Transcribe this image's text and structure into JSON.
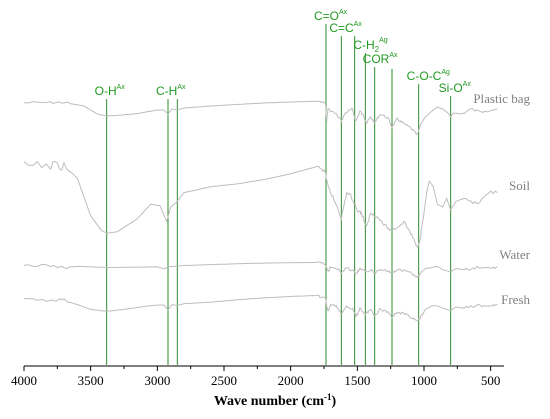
{
  "chart_data": {
    "type": "line",
    "xlabel": "Wave number (cm",
    "xlabel_sup": "-1",
    "xlabel_close": ")",
    "xlim": [
      4000,
      400
    ],
    "x_reversed": true,
    "x_ticks": [
      4000,
      3500,
      3000,
      2500,
      2000,
      1500,
      1000,
      500
    ],
    "y_axis_visible": false,
    "series": [
      {
        "name": "Plastic bag",
        "color": "#bdbdbd",
        "points": [
          [
            4000,
            0.9
          ],
          [
            3800,
            0.8
          ],
          [
            3700,
            0.75
          ],
          [
            3550,
            2.5
          ],
          [
            3450,
            6.5
          ],
          [
            3380,
            7.5
          ],
          [
            3300,
            7.2
          ],
          [
            3150,
            6.3
          ],
          [
            3000,
            4.5
          ],
          [
            2950,
            4.5
          ],
          [
            2920,
            6.5
          ],
          [
            2890,
            4.0
          ],
          [
            2850,
            4.5
          ],
          [
            2800,
            3.5
          ],
          [
            2600,
            2.5
          ],
          [
            2400,
            1.7
          ],
          [
            2200,
            1.0
          ],
          [
            2000,
            0.5
          ],
          [
            1800,
            0.1
          ],
          [
            1740,
            1.0
          ],
          [
            1730,
            10.0
          ],
          [
            1720,
            4.0
          ],
          [
            1660,
            6.5
          ],
          [
            1620,
            10.0
          ],
          [
            1590,
            6.0
          ],
          [
            1540,
            4.0
          ],
          [
            1510,
            10.0
          ],
          [
            1480,
            5.0
          ],
          [
            1450,
            8.0
          ],
          [
            1430,
            11.0
          ],
          [
            1400,
            8.0
          ],
          [
            1370,
            11.0
          ],
          [
            1330,
            6.5
          ],
          [
            1270,
            8.5
          ],
          [
            1240,
            13.0
          ],
          [
            1200,
            9.0
          ],
          [
            1160,
            11.0
          ],
          [
            1100,
            13.5
          ],
          [
            1050,
            17.0
          ],
          [
            1020,
            11.0
          ],
          [
            990,
            8.0
          ],
          [
            940,
            5.0
          ],
          [
            900,
            3.0
          ],
          [
            860,
            4.0
          ],
          [
            820,
            6.0
          ],
          [
            800,
            8.0
          ],
          [
            780,
            6.0
          ],
          [
            720,
            6.5
          ],
          [
            650,
            4.0
          ],
          [
            560,
            6.0
          ],
          [
            450,
            4.0
          ]
        ]
      },
      {
        "name": "Soil",
        "color": "#bdbdbd",
        "points": [
          [
            4000,
            4.8
          ],
          [
            3800,
            4.6
          ],
          [
            3700,
            4.8
          ],
          [
            3600,
            9.0
          ],
          [
            3500,
            22.0
          ],
          [
            3420,
            27.0
          ],
          [
            3380,
            28.0
          ],
          [
            3300,
            27.5
          ],
          [
            3150,
            23.0
          ],
          [
            3050,
            18.0
          ],
          [
            2980,
            18.5
          ],
          [
            2930,
            24.0
          ],
          [
            2900,
            19.0
          ],
          [
            2860,
            17.5
          ],
          [
            2800,
            14.0
          ],
          [
            2600,
            12.0
          ],
          [
            2400,
            11.0
          ],
          [
            2200,
            9.5
          ],
          [
            2000,
            7.5
          ],
          [
            1800,
            5.0
          ],
          [
            1740,
            7.0
          ],
          [
            1720,
            12.0
          ],
          [
            1700,
            14.0
          ],
          [
            1650,
            19.0
          ],
          [
            1620,
            23.0
          ],
          [
            1580,
            14.0
          ],
          [
            1550,
            15.0
          ],
          [
            1500,
            20.0
          ],
          [
            1470,
            21.0
          ],
          [
            1430,
            26.0
          ],
          [
            1400,
            21.0
          ],
          [
            1360,
            22.0
          ],
          [
            1300,
            25.0
          ],
          [
            1250,
            27.0
          ],
          [
            1200,
            26.0
          ],
          [
            1150,
            24.0
          ],
          [
            1100,
            28.0
          ],
          [
            1050,
            33.0
          ],
          [
            1030,
            30.0
          ],
          [
            1000,
            21.0
          ],
          [
            980,
            14.0
          ],
          [
            960,
            10.0
          ],
          [
            930,
            12.0
          ],
          [
            900,
            18.0
          ],
          [
            860,
            19.0
          ],
          [
            830,
            16.0
          ],
          [
            800,
            20.0
          ],
          [
            760,
            17.0
          ],
          [
            700,
            16.0
          ],
          [
            600,
            18.0
          ],
          [
            500,
            14.0
          ],
          [
            450,
            14.0
          ]
        ]
      },
      {
        "name": "Water",
        "color": "#bdbdbd",
        "points": [
          [
            4000,
            1.5
          ],
          [
            3800,
            1.7
          ],
          [
            3700,
            2.5
          ],
          [
            3600,
            2.0
          ],
          [
            3500,
            2.2
          ],
          [
            3380,
            2.5
          ],
          [
            3200,
            2.4
          ],
          [
            3000,
            2.2
          ],
          [
            2950,
            3.2
          ],
          [
            2920,
            2.2
          ],
          [
            2800,
            1.6
          ],
          [
            2600,
            1.2
          ],
          [
            2400,
            0.8
          ],
          [
            2200,
            0.5
          ],
          [
            2000,
            0.3
          ],
          [
            1800,
            0.2
          ],
          [
            1740,
            1.0
          ],
          [
            1720,
            4.5
          ],
          [
            1700,
            2.0
          ],
          [
            1650,
            3.0
          ],
          [
            1620,
            5.0
          ],
          [
            1590,
            3.0
          ],
          [
            1540,
            3.5
          ],
          [
            1510,
            5.5
          ],
          [
            1480,
            3.0
          ],
          [
            1440,
            4.5
          ],
          [
            1400,
            3.5
          ],
          [
            1370,
            5.0
          ],
          [
            1330,
            3.0
          ],
          [
            1270,
            4.0
          ],
          [
            1240,
            5.0
          ],
          [
            1200,
            3.5
          ],
          [
            1150,
            4.0
          ],
          [
            1100,
            5.0
          ],
          [
            1050,
            7.0
          ],
          [
            1020,
            5.0
          ],
          [
            990,
            3.0
          ],
          [
            940,
            2.5
          ],
          [
            900,
            2.0
          ],
          [
            860,
            3.5
          ],
          [
            800,
            4.5
          ],
          [
            760,
            3.0
          ],
          [
            700,
            3.5
          ],
          [
            600,
            2.5
          ],
          [
            500,
            3.0
          ],
          [
            450,
            2.5
          ]
        ]
      },
      {
        "name": "Fresh",
        "color": "#bdbdbd",
        "points": [
          [
            4000,
            2.0
          ],
          [
            3800,
            2.0
          ],
          [
            3700,
            2.2
          ],
          [
            3600,
            4.0
          ],
          [
            3500,
            6.0
          ],
          [
            3380,
            6.8
          ],
          [
            3250,
            6.0
          ],
          [
            3100,
            4.8
          ],
          [
            3000,
            4.2
          ],
          [
            2950,
            4.2
          ],
          [
            2920,
            6.2
          ],
          [
            2890,
            4.0
          ],
          [
            2850,
            4.4
          ],
          [
            2800,
            3.6
          ],
          [
            2600,
            3.0
          ],
          [
            2400,
            2.0
          ],
          [
            2200,
            1.2
          ],
          [
            2000,
            0.6
          ],
          [
            1800,
            0.2
          ],
          [
            1740,
            1.5
          ],
          [
            1720,
            7.0
          ],
          [
            1700,
            4.0
          ],
          [
            1650,
            5.0
          ],
          [
            1620,
            8.0
          ],
          [
            1590,
            5.0
          ],
          [
            1540,
            5.5
          ],
          [
            1510,
            9.0
          ],
          [
            1480,
            5.5
          ],
          [
            1440,
            8.0
          ],
          [
            1400,
            6.0
          ],
          [
            1370,
            8.5
          ],
          [
            1330,
            6.0
          ],
          [
            1270,
            7.0
          ],
          [
            1240,
            9.0
          ],
          [
            1200,
            7.0
          ],
          [
            1150,
            8.0
          ],
          [
            1100,
            9.0
          ],
          [
            1050,
            11.0
          ],
          [
            1020,
            9.0
          ],
          [
            990,
            6.0
          ],
          [
            940,
            4.5
          ],
          [
            900,
            4.5
          ],
          [
            860,
            5.5
          ],
          [
            800,
            6.5
          ],
          [
            760,
            5.0
          ],
          [
            700,
            5.5
          ],
          [
            600,
            4.5
          ],
          [
            500,
            4.5
          ],
          [
            450,
            4.0
          ]
        ]
      }
    ],
    "annotations": [
      {
        "main": "O-H",
        "sup": "Ax",
        "x": 3380
      },
      {
        "main": "C-H",
        "sup": "Ax",
        "x": 2920
      },
      {
        "main": "",
        "sup": "",
        "x": 2850
      },
      {
        "main": "C=O",
        "sup": "Ax",
        "x": 1735
      },
      {
        "main": "C=C",
        "sup": "Ax",
        "x": 1620
      },
      {
        "main": "",
        "sup": "",
        "x": 1520
      },
      {
        "main": "C-H",
        "sub": "2",
        "sup": "Ag",
        "x": 1440
      },
      {
        "main": "COR",
        "sup": "Ax",
        "x": 1370
      },
      {
        "main": "",
        "sup": "",
        "x": 1240
      },
      {
        "main": "C-O-C",
        "sup": "Ag",
        "x": 1040
      },
      {
        "main": "Si-O",
        "sup": "Ax",
        "x": 800
      }
    ],
    "grid": false,
    "legend": "inline-labels-right"
  }
}
